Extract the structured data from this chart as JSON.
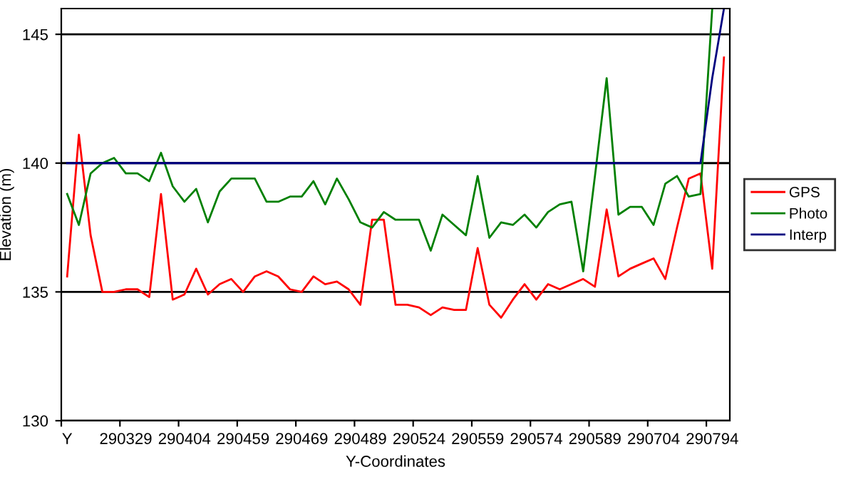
{
  "chart_data": {
    "type": "line",
    "xlabel": "Y-Coordinates",
    "ylabel": "Elevation (m)",
    "categories": [
      "Y",
      null,
      null,
      null,
      null,
      "290329",
      null,
      null,
      null,
      null,
      "290404",
      null,
      null,
      null,
      null,
      "290459",
      null,
      null,
      null,
      null,
      "290469",
      null,
      null,
      null,
      null,
      "290489",
      null,
      null,
      null,
      null,
      "290524",
      null,
      null,
      null,
      null,
      "290559",
      null,
      null,
      null,
      null,
      "290574",
      null,
      null,
      null,
      null,
      "290589",
      null,
      null,
      null,
      null,
      "290704",
      null,
      null,
      null,
      null,
      "290794",
      null
    ],
    "series": [
      {
        "name": "GPS",
        "color": "#ff0000",
        "values": [
          135.6,
          141.1,
          137.2,
          135.0,
          135.0,
          135.1,
          135.1,
          134.8,
          138.8,
          134.7,
          134.9,
          135.9,
          134.9,
          135.3,
          135.5,
          135.0,
          135.6,
          135.8,
          135.6,
          135.1,
          135.0,
          135.6,
          135.3,
          135.4,
          135.1,
          134.5,
          137.8,
          137.8,
          134.5,
          134.5,
          134.4,
          134.1,
          134.4,
          134.3,
          134.3,
          136.7,
          134.5,
          134.0,
          134.7,
          135.3,
          134.7,
          135.3,
          135.1,
          135.3,
          135.5,
          135.2,
          138.2,
          135.6,
          135.9,
          136.1,
          136.3,
          135.5,
          137.5,
          139.4,
          139.6,
          135.9,
          144.1
        ]
      },
      {
        "name": "Photo",
        "color": "#008000",
        "values": [
          138.8,
          137.6,
          139.6,
          140.0,
          140.2,
          139.6,
          139.6,
          139.3,
          140.4,
          139.1,
          138.5,
          139.0,
          137.7,
          138.9,
          139.4,
          139.4,
          139.4,
          138.5,
          138.5,
          138.7,
          138.7,
          139.3,
          138.4,
          139.4,
          138.6,
          137.7,
          137.5,
          138.1,
          137.8,
          137.8,
          137.8,
          136.6,
          138.0,
          137.6,
          137.2,
          139.5,
          137.1,
          137.7,
          137.6,
          138.0,
          137.5,
          138.1,
          138.4,
          138.5,
          135.8,
          139.5,
          143.3,
          138.0,
          138.3,
          138.3,
          137.6,
          139.2,
          139.5,
          138.7,
          138.8,
          146,
          null
        ]
      },
      {
        "name": "Interp",
        "color": "#000080",
        "values": [
          140,
          140,
          140,
          140,
          140,
          140,
          140,
          140,
          140,
          140,
          140,
          140,
          140,
          140,
          140,
          140,
          140,
          140,
          140,
          140,
          140,
          140,
          140,
          140,
          140,
          140,
          140,
          140,
          140,
          140,
          140,
          140,
          140,
          140,
          140,
          140,
          140,
          140,
          140,
          140,
          140,
          140,
          140,
          140,
          140,
          140,
          140,
          140,
          140,
          140,
          140,
          140,
          140,
          140,
          140,
          143.3,
          146
        ]
      }
    ],
    "ylim": [
      130,
      146
    ],
    "yticks": [
      130,
      135,
      140,
      145
    ],
    "grid": "y",
    "legend": "right",
    "marker": "none",
    "line_style": "solid"
  }
}
